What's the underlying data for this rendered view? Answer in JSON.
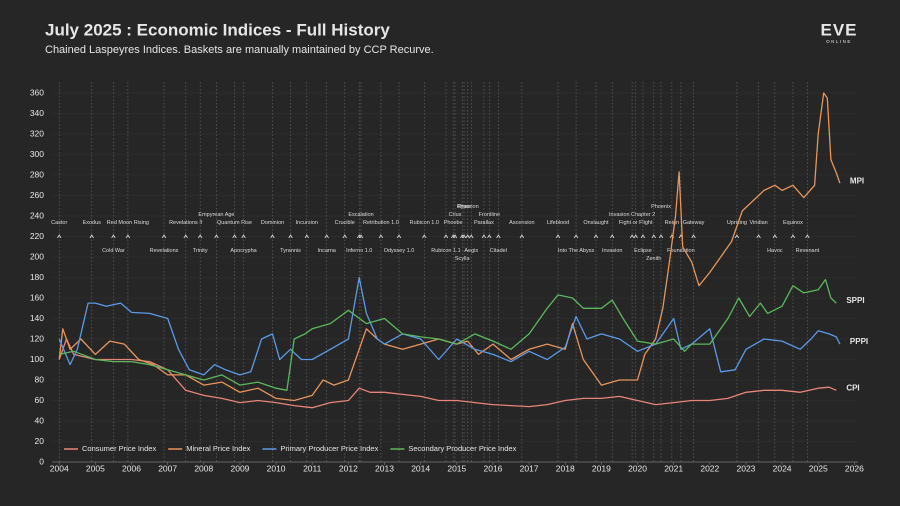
{
  "chart_data": {
    "type": "line",
    "title": "July 2025 : Economic Indices - Full History",
    "subtitle": "Chained Laspeyres Indices. Baskets are manually maintained by CCP Recurve.",
    "logo": {
      "name": "EVE",
      "tagline": "ONLINE"
    },
    "xlim": [
      2003.8,
      2026.1
    ],
    "xticks": [
      2004,
      2005,
      2006,
      2007,
      2008,
      2009,
      2010,
      2011,
      2012,
      2013,
      2014,
      2015,
      2016,
      2017,
      2018,
      2019,
      2020,
      2021,
      2022,
      2023,
      2024,
      2025,
      2026
    ],
    "ylim": [
      0,
      360
    ],
    "yticks": [
      0,
      20,
      40,
      60,
      80,
      100,
      120,
      140,
      160,
      180,
      200,
      220,
      240,
      260,
      280,
      300,
      320,
      340,
      360
    ],
    "grid": true,
    "legend": "bottom-left",
    "annotation_level": 220,
    "annotations": [
      {
        "label": "Castor",
        "x": 2004.0
      },
      {
        "label": "Exodus",
        "x": 2004.9
      },
      {
        "label": "Cold War",
        "x": 2005.5
      },
      {
        "label": "Red Moon Rising",
        "x": 2005.9
      },
      {
        "label": "Revelations",
        "x": 2006.9
      },
      {
        "label": "Revelations II",
        "x": 2007.5
      },
      {
        "label": "Trinity",
        "x": 2007.9
      },
      {
        "label": "Empyrean Age",
        "x": 2008.35
      },
      {
        "label": "Quantum Rise",
        "x": 2008.85
      },
      {
        "label": "Apocrypha",
        "x": 2009.1
      },
      {
        "label": "Dominion",
        "x": 2009.9
      },
      {
        "label": "Tyrannis",
        "x": 2010.4
      },
      {
        "label": "Incursion",
        "x": 2010.85
      },
      {
        "label": "Incarna",
        "x": 2011.4
      },
      {
        "label": "Crucible",
        "x": 2011.9
      },
      {
        "label": "Inferno 1.0",
        "x": 2012.3
      },
      {
        "label": "Escalation",
        "x": 2012.35
      },
      {
        "label": "Retribution 1.0",
        "x": 2012.9
      },
      {
        "label": "Odyssey 1.0",
        "x": 2013.4
      },
      {
        "label": "Rubicon 1.0",
        "x": 2014.1
      },
      {
        "label": "Rubicon 1.1",
        "x": 2014.7
      },
      {
        "label": "Phoebe",
        "x": 2014.9
      },
      {
        "label": "Crius",
        "x": 2014.95
      },
      {
        "label": "Scylla",
        "x": 2015.15
      },
      {
        "label": "Rhea",
        "x": 2015.2
      },
      {
        "label": "Hyperion",
        "x": 2015.3
      },
      {
        "label": "Aegis",
        "x": 2015.4
      },
      {
        "label": "Parallax",
        "x": 2015.75
      },
      {
        "label": "Frontline",
        "x": 2015.9
      },
      {
        "label": "Citadel",
        "x": 2016.15
      },
      {
        "label": "Ascension",
        "x": 2016.8
      },
      {
        "label": "Lifeblood",
        "x": 2017.8
      },
      {
        "label": "Into The Abyss",
        "x": 2018.3
      },
      {
        "label": "Onslaught",
        "x": 2018.85
      },
      {
        "label": "Invasion",
        "x": 2019.3
      },
      {
        "label": "Invasion Chapter 2",
        "x": 2019.85
      },
      {
        "label": "Fight or Flight",
        "x": 2019.95
      },
      {
        "label": "Eclipse",
        "x": 2020.15
      },
      {
        "label": "Zenith",
        "x": 2020.45
      },
      {
        "label": "Phoenix",
        "x": 2020.65
      },
      {
        "label": "Reign",
        "x": 2020.95
      },
      {
        "label": "Foundation",
        "x": 2021.2
      },
      {
        "label": "Gateway",
        "x": 2021.55
      },
      {
        "label": "Uprising",
        "x": 2022.75
      },
      {
        "label": "Viridian",
        "x": 2023.35
      },
      {
        "label": "Havoc",
        "x": 2023.8
      },
      {
        "label": "Equinox",
        "x": 2024.3
      },
      {
        "label": "Revenant",
        "x": 2024.7
      }
    ],
    "series": [
      {
        "name": "Consumer Price Index",
        "end_label": "CPI",
        "color": "#e8857a",
        "x": [
          2004,
          2004.2,
          2004.4,
          2005,
          2006,
          2006.5,
          2007,
          2007.5,
          2008,
          2008.5,
          2009,
          2009.5,
          2010,
          2010.5,
          2011,
          2011.5,
          2012,
          2012.3,
          2012.6,
          2013,
          2013.5,
          2014,
          2014.5,
          2015,
          2015.5,
          2016,
          2016.5,
          2017,
          2017.5,
          2018,
          2018.5,
          2019,
          2019.5,
          2020,
          2020.5,
          2021,
          2021.5,
          2022,
          2022.5,
          2023,
          2023.5,
          2024,
          2024.5,
          2025,
          2025.3,
          2025.5
        ],
        "values": [
          100,
          120,
          105,
          100,
          100,
          98,
          90,
          70,
          65,
          62,
          58,
          60,
          58,
          55,
          53,
          58,
          60,
          72,
          68,
          68,
          66,
          64,
          60,
          60,
          58,
          56,
          55,
          54,
          56,
          60,
          62,
          62,
          64,
          60,
          56,
          58,
          60,
          60,
          62,
          68,
          70,
          70,
          68,
          72,
          73,
          70
        ]
      },
      {
        "name": "Mineral Price Index",
        "end_label": "MPI",
        "color": "#e8955a",
        "x": [
          2004,
          2004.1,
          2004.3,
          2004.6,
          2005,
          2005.4,
          2005.8,
          2006.2,
          2006.6,
          2007,
          2007.5,
          2008,
          2008.5,
          2009,
          2009.5,
          2010,
          2010.5,
          2011,
          2011.3,
          2011.6,
          2012,
          2012.3,
          2012.5,
          2012.8,
          2013,
          2013.5,
          2014,
          2014.5,
          2015,
          2015.3,
          2015.6,
          2016,
          2016.5,
          2017,
          2017.5,
          2018,
          2018.2,
          2018.5,
          2019,
          2019.5,
          2020,
          2020.2,
          2020.5,
          2020.7,
          2020.9,
          2021.05,
          2021.15,
          2021.25,
          2021.5,
          2021.7,
          2022,
          2022.3,
          2022.6,
          2022.9,
          2023.2,
          2023.5,
          2023.8,
          2024,
          2024.3,
          2024.6,
          2024.9,
          2025,
          2025.15,
          2025.25,
          2025.35,
          2025.5,
          2025.6
        ],
        "values": [
          100,
          130,
          110,
          120,
          105,
          118,
          115,
          100,
          95,
          85,
          85,
          75,
          78,
          68,
          72,
          62,
          60,
          65,
          80,
          75,
          80,
          110,
          130,
          120,
          115,
          110,
          115,
          120,
          115,
          118,
          105,
          115,
          100,
          110,
          115,
          110,
          135,
          100,
          75,
          80,
          80,
          105,
          120,
          150,
          200,
          240,
          283,
          210,
          195,
          172,
          185,
          200,
          215,
          245,
          255,
          265,
          270,
          265,
          270,
          258,
          270,
          320,
          360,
          355,
          295,
          282,
          272
        ]
      },
      {
        "name": "Primary Producer Price Index",
        "end_label": "PPPI",
        "color": "#5b9ae8",
        "x": [
          2004,
          2004.3,
          2004.5,
          2004.8,
          2005,
          2005.3,
          2005.7,
          2006,
          2006.5,
          2007,
          2007.3,
          2007.6,
          2008,
          2008.3,
          2008.6,
          2009,
          2009.3,
          2009.6,
          2009.9,
          2010.1,
          2010.4,
          2010.7,
          2011,
          2011.5,
          2012,
          2012.3,
          2012.5,
          2012.8,
          2013,
          2013.5,
          2014,
          2014.5,
          2015,
          2015.5,
          2016,
          2016.5,
          2017,
          2017.5,
          2018,
          2018.3,
          2018.6,
          2019,
          2019.5,
          2020,
          2020.5,
          2021,
          2021.2,
          2021.5,
          2022,
          2022.3,
          2022.7,
          2023,
          2023.5,
          2024,
          2024.5,
          2024.8,
          2025,
          2025.3,
          2025.5,
          2025.6
        ],
        "values": [
          120,
          95,
          110,
          155,
          155,
          152,
          155,
          146,
          145,
          140,
          110,
          90,
          85,
          95,
          90,
          85,
          88,
          120,
          125,
          100,
          110,
          100,
          100,
          110,
          120,
          180,
          145,
          120,
          115,
          125,
          120,
          100,
          120,
          110,
          105,
          98,
          108,
          100,
          112,
          142,
          120,
          125,
          120,
          108,
          115,
          140,
          110,
          115,
          130,
          88,
          90,
          110,
          120,
          118,
          110,
          120,
          128,
          125,
          122,
          115
        ]
      },
      {
        "name": "Secondary Producer Price Index",
        "end_label": "SPPI",
        "color": "#5cb85c",
        "x": [
          2004,
          2004.4,
          2005,
          2005.5,
          2006,
          2006.5,
          2007,
          2007.5,
          2008,
          2008.5,
          2009,
          2009.5,
          2010,
          2010.3,
          2010.5,
          2010.8,
          2011,
          2011.5,
          2012,
          2012.5,
          2013,
          2013.5,
          2014,
          2014.5,
          2015,
          2015.5,
          2016,
          2016.5,
          2017,
          2017.5,
          2017.8,
          2018.2,
          2018.5,
          2019,
          2019.3,
          2019.6,
          2020,
          2020.5,
          2021,
          2021.3,
          2021.5,
          2022,
          2022.5,
          2022.8,
          2023.1,
          2023.4,
          2023.6,
          2024,
          2024.3,
          2024.6,
          2025,
          2025.2,
          2025.35,
          2025.5
        ],
        "values": [
          105,
          108,
          100,
          98,
          98,
          95,
          90,
          85,
          80,
          85,
          75,
          78,
          72,
          70,
          120,
          125,
          130,
          135,
          148,
          135,
          140,
          125,
          122,
          120,
          115,
          125,
          118,
          110,
          125,
          150,
          163,
          160,
          150,
          150,
          158,
          140,
          118,
          115,
          120,
          108,
          115,
          115,
          140,
          160,
          142,
          155,
          145,
          152,
          172,
          165,
          168,
          178,
          160,
          155
        ]
      }
    ]
  }
}
